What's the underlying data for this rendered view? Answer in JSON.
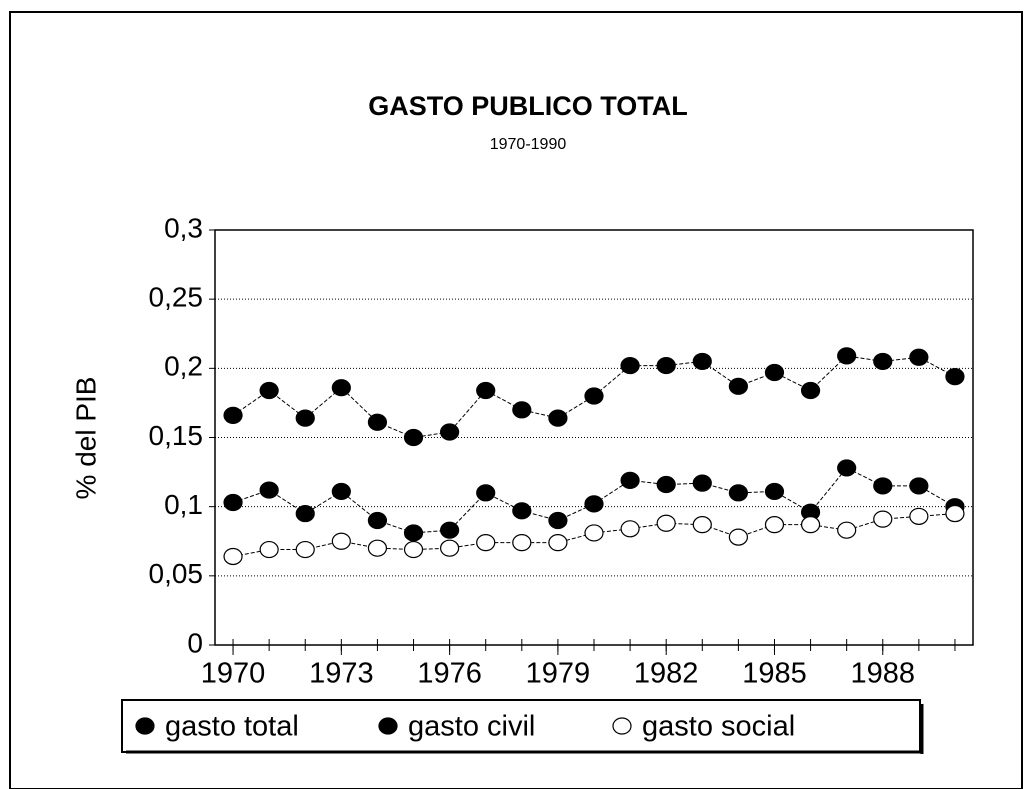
{
  "chart_data": {
    "type": "line",
    "title": "GASTO PUBLICO TOTAL",
    "subtitle": "1970-1990",
    "y_label": "% del PIB",
    "x": [
      1970,
      1971,
      1972,
      1973,
      1974,
      1975,
      1976,
      1977,
      1978,
      1979,
      1980,
      1981,
      1982,
      1983,
      1984,
      1985,
      1986,
      1987,
      1988,
      1989,
      1990
    ],
    "xlim": [
      1969.5,
      1990.5
    ],
    "xticks": [
      1970,
      1973,
      1976,
      1979,
      1982,
      1985,
      1988
    ],
    "ylim": [
      0,
      0.3
    ],
    "yticks": [
      0,
      {
        "value": 0.05,
        "label": "0,05"
      },
      {
        "value": 0.1,
        "label": "0,1"
      },
      {
        "value": 0.15,
        "label": "0,15"
      },
      {
        "value": 0.2,
        "label": "0,2"
      },
      {
        "value": 0.25,
        "label": "0,25"
      },
      {
        "value": 0.3,
        "label": "0,3"
      }
    ],
    "grid": true,
    "legend": "bottom",
    "series": [
      {
        "name": "gasto total",
        "color": "#000000",
        "values": [
          0.166,
          0.184,
          0.164,
          0.186,
          0.161,
          0.15,
          0.154,
          0.184,
          0.17,
          0.164,
          0.18,
          0.202,
          0.202,
          0.205,
          0.187,
          0.197,
          0.184,
          0.209,
          0.205,
          0.208,
          0.194
        ]
      },
      {
        "name": "gasto civil",
        "color": "#000000",
        "values": [
          0.103,
          0.112,
          0.095,
          0.111,
          0.09,
          0.081,
          0.083,
          0.11,
          0.097,
          0.09,
          0.102,
          0.119,
          0.116,
          0.117,
          0.11,
          0.111,
          0.096,
          0.128,
          0.115,
          0.115,
          0.1
        ]
      },
      {
        "name": "gasto social",
        "color": "#ffffff",
        "values": [
          0.064,
          0.069,
          0.069,
          0.075,
          0.07,
          0.069,
          0.07,
          0.074,
          0.074,
          0.074,
          0.081,
          0.084,
          0.088,
          0.087,
          0.078,
          0.087,
          0.087,
          0.083,
          0.091,
          0.093,
          0.095
        ]
      }
    ]
  }
}
